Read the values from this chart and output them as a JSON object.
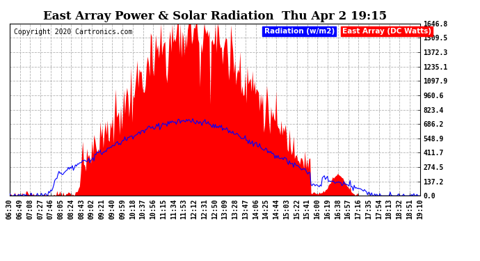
{
  "title": "East Array Power & Solar Radiation  Thu Apr 2 19:15",
  "copyright": "Copyright 2020 Cartronics.com",
  "legend_radiation": "Radiation (w/m2)",
  "legend_east": "East Array (DC Watts)",
  "bg_color": "#ffffff",
  "plot_bg_color": "#ffffff",
  "y_ticks": [
    0.0,
    137.2,
    274.5,
    411.7,
    548.9,
    686.2,
    823.4,
    960.6,
    1097.9,
    1235.1,
    1372.3,
    1509.5,
    1646.8
  ],
  "y_max": 1646.8,
  "x_labels": [
    "06:30",
    "06:49",
    "07:08",
    "07:27",
    "07:46",
    "08:05",
    "08:24",
    "08:43",
    "09:02",
    "09:21",
    "09:40",
    "09:59",
    "10:18",
    "10:37",
    "10:56",
    "11:15",
    "11:34",
    "11:53",
    "12:12",
    "12:31",
    "12:50",
    "13:09",
    "13:28",
    "13:47",
    "14:06",
    "14:25",
    "14:44",
    "15:03",
    "15:22",
    "15:41",
    "16:00",
    "16:19",
    "16:38",
    "16:57",
    "17:16",
    "17:35",
    "17:54",
    "18:13",
    "18:32",
    "18:51",
    "19:10"
  ],
  "radiation_color": "#0000ff",
  "east_color": "#ff0000",
  "grid_color": "#aaaaaa",
  "title_color": "#000000",
  "title_fontsize": 12,
  "axis_label_fontsize": 7,
  "copyright_fontsize": 7
}
